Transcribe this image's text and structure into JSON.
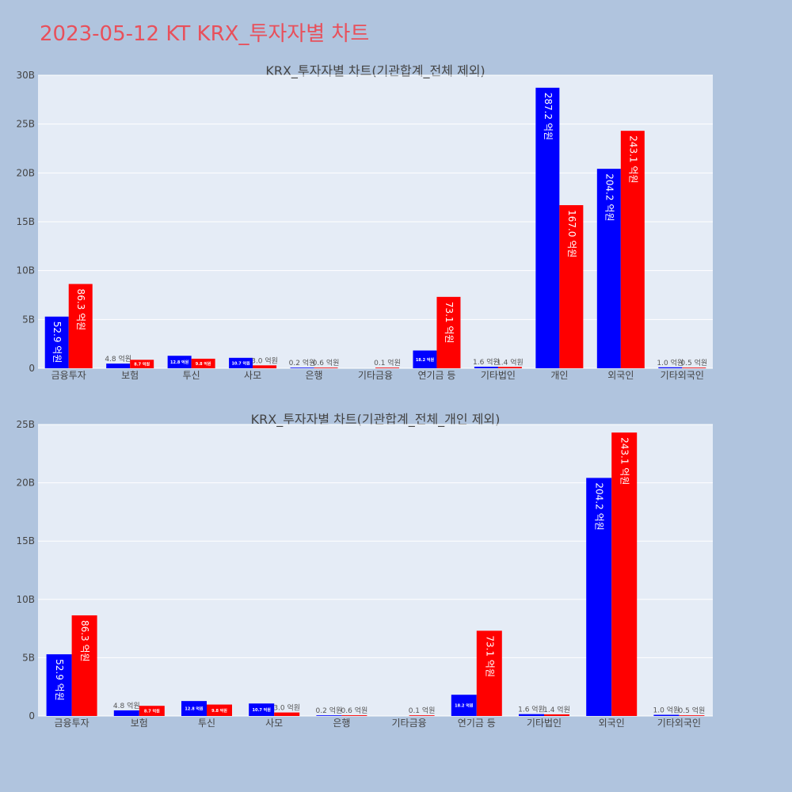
{
  "page": {
    "title": "2023-05-12 KT KRX_투자자별 차트"
  },
  "colors": {
    "background": "#b0c4de",
    "plot_bg": "#e5ecf6",
    "grid": "#ffffff",
    "buy": "#0000ff",
    "sell": "#ff0000",
    "title": "#e8505b"
  },
  "chart_data": [
    {
      "type": "bar",
      "title": "KRX_투자자별 차트(기관합계_전체 제외)",
      "categories": [
        "금융투자",
        "보험",
        "투신",
        "사모",
        "은행",
        "기타금융",
        "연기금 등",
        "기타법인",
        "개인",
        "외국인",
        "기타외국인"
      ],
      "series": [
        {
          "color": "#0000ff",
          "values": [
            5.29,
            0.48,
            1.28,
            1.07,
            0.02,
            0,
            1.82,
            0.16,
            28.72,
            20.42,
            0.1
          ],
          "labels": [
            "52.9 억원",
            "4.8 억원",
            "12.8 억원",
            "10.7 억원",
            "0.2 억원",
            "",
            "18.2 억원",
            "1.6 억원",
            "287.2 억원",
            "204.2 억원",
            "1.0 억원"
          ]
        },
        {
          "color": "#ff0000",
          "values": [
            8.63,
            0.87,
            0.98,
            0.3,
            0.06,
            0.01,
            7.31,
            0.14,
            16.7,
            24.31,
            0.05
          ],
          "labels": [
            "86.3 억원",
            "8.7 억원",
            "9.8 억원",
            "3.0 억원",
            "0.6 억원",
            "0.1 억원",
            "73.1 억원",
            "1.4 억원",
            "167.0 억원",
            "243.1 억원",
            "0.5 억원"
          ]
        }
      ],
      "yticks": [
        "0",
        "5B",
        "10B",
        "15B",
        "20B",
        "25B",
        "30B"
      ],
      "ylim": [
        0,
        30
      ]
    },
    {
      "type": "bar",
      "title": "KRX_투자자별 차트(기관합계_전체_개인 제외)",
      "categories": [
        "금융투자",
        "보험",
        "투신",
        "사모",
        "은행",
        "기타금융",
        "연기금 등",
        "기타법인",
        "외국인",
        "기타외국인"
      ],
      "series": [
        {
          "color": "#0000ff",
          "values": [
            5.29,
            0.48,
            1.28,
            1.07,
            0.02,
            0,
            1.82,
            0.16,
            20.42,
            0.1
          ],
          "labels": [
            "52.9 억원",
            "4.8 억원",
            "12.8 억원",
            "10.7 억원",
            "0.2 억원",
            "",
            "18.2 억원",
            "1.6 억원",
            "204.2 억원",
            "1.0 억원"
          ]
        },
        {
          "color": "#ff0000",
          "values": [
            8.63,
            0.87,
            0.98,
            0.3,
            0.06,
            0.01,
            7.31,
            0.14,
            24.31,
            0.05
          ],
          "labels": [
            "86.3 억원",
            "8.7 억원",
            "9.8 억원",
            "3.0 억원",
            "0.6 억원",
            "0.1 억원",
            "73.1 억원",
            "1.4 억원",
            "243.1 억원",
            "0.5 억원"
          ]
        }
      ],
      "yticks": [
        "0",
        "5B",
        "10B",
        "15B",
        "20B",
        "25B"
      ],
      "ylim": [
        0,
        25
      ]
    }
  ]
}
